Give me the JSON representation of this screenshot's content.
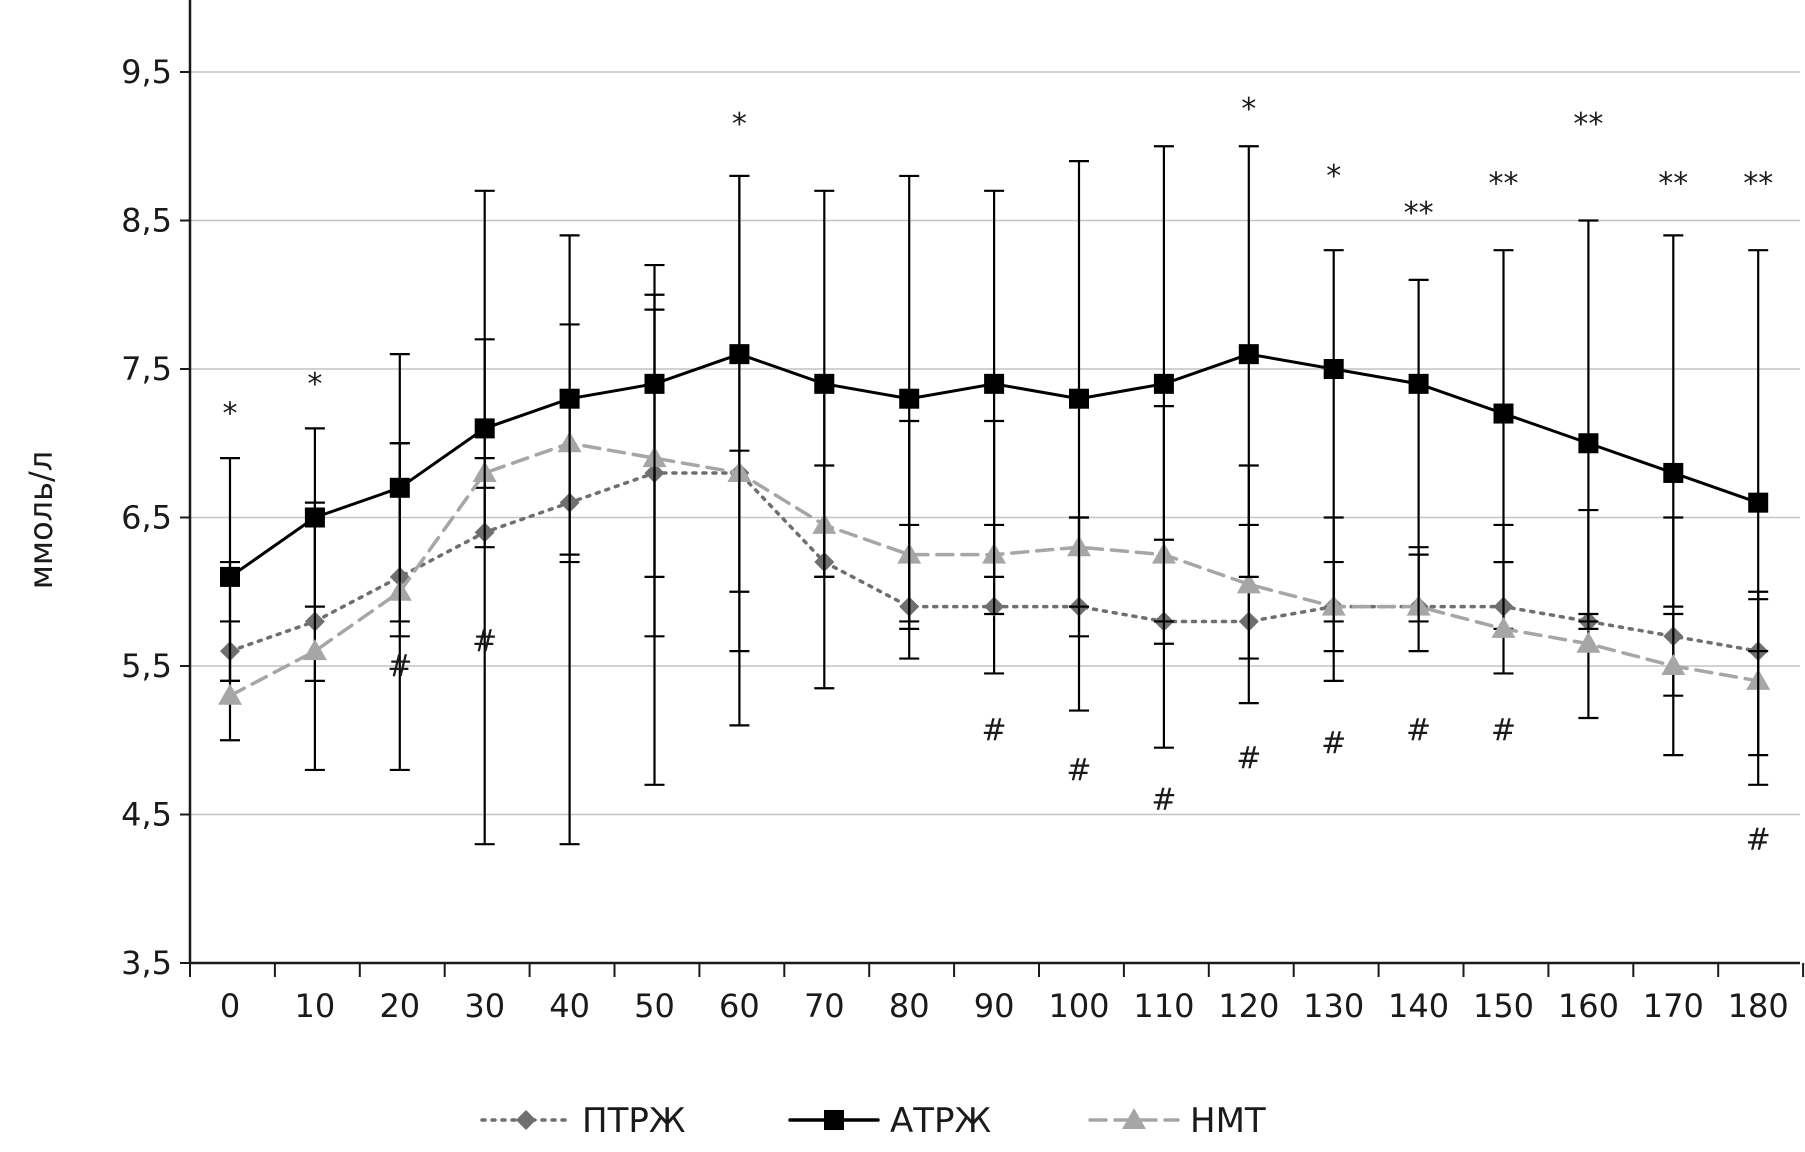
{
  "chart_data": {
    "type": "line",
    "title": "",
    "xlabel": "",
    "ylabel": "ммоль/л",
    "ylim": [
      3.5,
      10
    ],
    "yticks": [
      "3,5",
      "4,5",
      "5,5",
      "6,5",
      "7,5",
      "8,5",
      "9,5"
    ],
    "ytick_values": [
      3.5,
      4.5,
      5.5,
      6.5,
      7.5,
      8.5,
      9.5
    ],
    "categories": [
      "0",
      "10",
      "20",
      "30",
      "40",
      "50",
      "60",
      "70",
      "80",
      "90",
      "100",
      "110",
      "120",
      "130",
      "140",
      "150",
      "160",
      "170",
      "180"
    ],
    "grid": true,
    "legend_position": "bottom-center",
    "series": [
      {
        "name": "ПТРЖ",
        "style": "dotted",
        "marker": "diamond",
        "color": "#6f6f6f",
        "values": [
          5.6,
          5.8,
          6.1,
          6.4,
          6.6,
          6.8,
          6.8,
          6.2,
          5.9,
          5.9,
          5.9,
          5.8,
          5.8,
          5.9,
          5.9,
          5.9,
          5.8,
          5.7,
          5.6
        ],
        "err_low": [
          5.4,
          5.4,
          5.7,
          6.3,
          6.2,
          5.7,
          5.6,
          6.1,
          5.75,
          5.45,
          5.2,
          5.65,
          5.55,
          5.6,
          5.6,
          5.45,
          5.15,
          4.9,
          4.9
        ],
        "err_high": [
          5.8,
          6.6,
          7.0,
          7.7,
          7.8,
          8.0,
          8.8,
          6.85,
          6.45,
          7.15,
          6.5,
          6.35,
          6.85,
          6.5,
          6.3,
          6.45,
          6.55,
          6.5,
          6.0
        ]
      },
      {
        "name": "АТРЖ",
        "style": "solid",
        "marker": "square",
        "color": "#000000",
        "values": [
          6.1,
          6.5,
          6.7,
          7.1,
          7.3,
          7.4,
          7.6,
          7.4,
          7.3,
          7.4,
          7.3,
          7.4,
          7.6,
          7.5,
          7.4,
          7.2,
          7.0,
          6.8,
          6.6
        ],
        "err_low": [
          5.4,
          5.9,
          5.8,
          4.3,
          4.3,
          6.1,
          6.0,
          6.1,
          5.8,
          6.1,
          5.7,
          5.8,
          6.1,
          5.4,
          5.8,
          6.2,
          5.8,
          5.9,
          4.7
        ],
        "err_high": [
          6.9,
          7.1,
          7.6,
          8.7,
          8.4,
          8.2,
          8.8,
          8.7,
          8.8,
          8.7,
          8.9,
          9.0,
          9.0,
          8.3,
          8.1,
          8.3,
          8.5,
          8.4,
          8.3
        ]
      },
      {
        "name": "НМТ",
        "style": "dashed",
        "marker": "triangle",
        "color": "#a6a6a6",
        "values": [
          5.3,
          5.6,
          6.0,
          6.8,
          7.0,
          6.9,
          6.8,
          6.45,
          6.25,
          6.25,
          6.3,
          6.25,
          6.05,
          5.9,
          5.9,
          5.75,
          5.65,
          5.5,
          5.4
        ],
        "err_low": [
          5.0,
          4.8,
          4.8,
          6.7,
          6.25,
          4.7,
          5.1,
          5.35,
          5.55,
          5.85,
          5.9,
          4.95,
          5.25,
          5.8,
          5.85,
          5.75,
          5.75,
          5.3,
          5.6
        ],
        "err_high": [
          6.2,
          6.55,
          7.0,
          6.9,
          7.35,
          7.9,
          6.95,
          7.35,
          7.15,
          6.45,
          6.5,
          7.25,
          6.45,
          6.2,
          6.25,
          6.2,
          5.85,
          5.85,
          5.95
        ]
      }
    ],
    "annotations": [
      {
        "text": "*",
        "x_index": 0,
        "value": 7.2
      },
      {
        "text": "*",
        "x_index": 1,
        "value": 7.4
      },
      {
        "text": "*",
        "x_index": 6,
        "value": 9.15
      },
      {
        "text": "*",
        "x_index": 12,
        "value": 9.25
      },
      {
        "text": "*",
        "x_index": 13,
        "value": 8.8
      },
      {
        "text": "**",
        "x_index": 14,
        "value": 8.55
      },
      {
        "text": "**",
        "x_index": 15,
        "value": 8.75
      },
      {
        "text": "**",
        "x_index": 16,
        "value": 9.15
      },
      {
        "text": "**",
        "x_index": 17,
        "value": 8.75
      },
      {
        "text": "**",
        "x_index": 18,
        "value": 8.75
      },
      {
        "text": "#",
        "x_index": 2,
        "value": 5.5
      },
      {
        "text": "#",
        "x_index": 3,
        "value": 5.67
      },
      {
        "text": "#",
        "x_index": 9,
        "value": 5.07
      },
      {
        "text": "#",
        "x_index": 10,
        "value": 4.8
      },
      {
        "text": "#",
        "x_index": 11,
        "value": 4.6
      },
      {
        "text": "#",
        "x_index": 12,
        "value": 4.88
      },
      {
        "text": "#",
        "x_index": 13,
        "value": 4.98
      },
      {
        "text": "#",
        "x_index": 14,
        "value": 5.07
      },
      {
        "text": "#",
        "x_index": 15,
        "value": 5.07
      },
      {
        "text": "#",
        "x_index": 18,
        "value": 4.33
      }
    ]
  }
}
